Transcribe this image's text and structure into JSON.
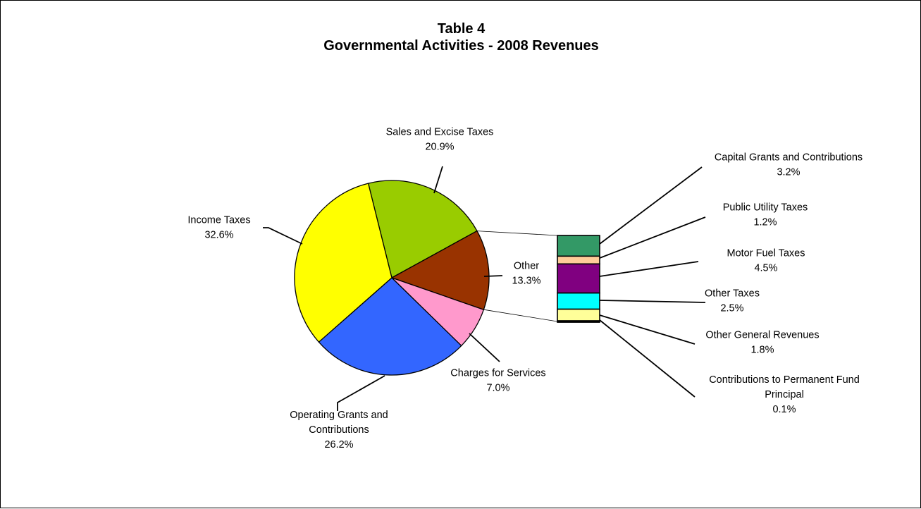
{
  "chart_data": {
    "type": "pie",
    "title": "Table 4",
    "subtitle": "Governmental Activities - 2008 Revenues",
    "slices": [
      {
        "label_lines": [
          "Sales and Excise Taxes"
        ],
        "value_text": "20.9%",
        "value": 20.9,
        "color": "#99CC00"
      },
      {
        "label_lines": [
          "Other"
        ],
        "value_text": "13.3%",
        "value": 13.3,
        "color": "#993300"
      },
      {
        "label_lines": [
          "Charges for Services"
        ],
        "value_text": "7.0%",
        "value": 7.0,
        "color": "#FF99CC"
      },
      {
        "label_lines": [
          "Operating Grants and",
          "Contributions"
        ],
        "value_text": "26.2%",
        "value": 26.2,
        "color": "#3366FF"
      },
      {
        "label_lines": [
          "Income Taxes"
        ],
        "value_text": "32.6%",
        "value": 32.6,
        "color": "#FFFF00"
      }
    ],
    "breakdown_of": "Other",
    "breakdown": [
      {
        "label_lines": [
          "Capital Grants and Contributions"
        ],
        "value_text": "3.2%",
        "value": 3.2,
        "color": "#339966"
      },
      {
        "label_lines": [
          "Public Utility Taxes"
        ],
        "value_text": "1.2%",
        "value": 1.2,
        "color": "#FFCC99"
      },
      {
        "label_lines": [
          "Motor Fuel Taxes"
        ],
        "value_text": "4.5%",
        "value": 4.5,
        "color": "#800080"
      },
      {
        "label_lines": [
          "Other Taxes"
        ],
        "value_text": "2.5%",
        "value": 2.5,
        "color": "#00FFFF"
      },
      {
        "label_lines": [
          "Other General Revenues"
        ],
        "value_text": "1.8%",
        "value": 1.8,
        "color": "#FFFF99"
      },
      {
        "label_lines": [
          "Contributions to Permanent Fund",
          "Principal"
        ],
        "value_text": "0.1%",
        "value": 0.1,
        "color": "#000000"
      }
    ]
  }
}
